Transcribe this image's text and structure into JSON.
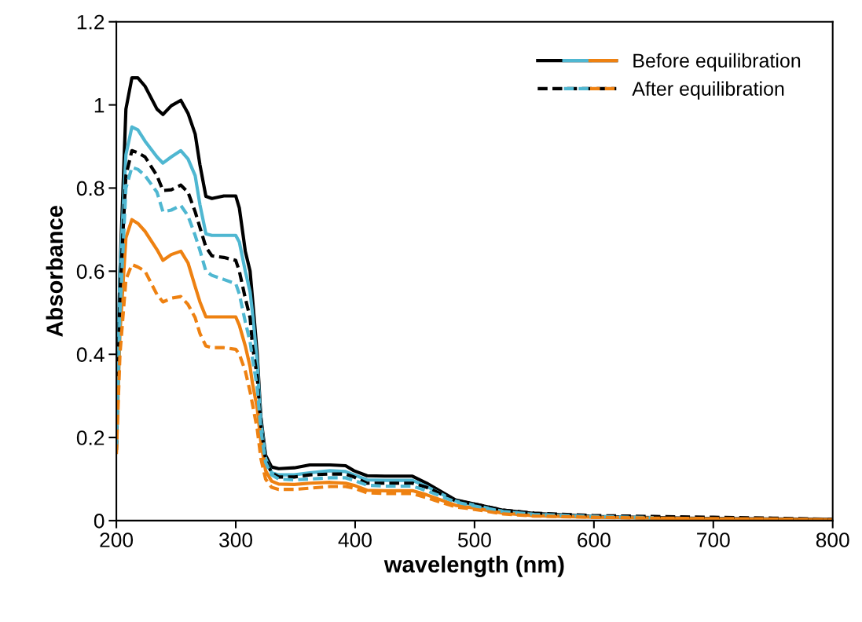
{
  "chart_data": {
    "type": "line",
    "xlabel": "wavelength (nm)",
    "ylabel": "Absorbance",
    "x": [
      200,
      203,
      208,
      213,
      218,
      224,
      234,
      239,
      246,
      254,
      260,
      266,
      270,
      275,
      280,
      290,
      300,
      303,
      308,
      312,
      314,
      318,
      321,
      325,
      330,
      336,
      349,
      362,
      379,
      392,
      399,
      410,
      425,
      448,
      460,
      484,
      500,
      524,
      550,
      600,
      650,
      700,
      750,
      800
    ],
    "xlim": [
      200,
      800
    ],
    "xticks": [
      200,
      300,
      400,
      500,
      600,
      700,
      800
    ],
    "ylim": [
      0,
      1.2
    ],
    "yticks": [
      0,
      0.2,
      0.4,
      0.6,
      0.8,
      1,
      1.2
    ],
    "grid": false,
    "legend": "top right",
    "marker": "none",
    "series": [
      {
        "name": "Before equilibration",
        "color": "#000000",
        "line_style": "solid",
        "values": [
          0.2,
          0.6,
          0.99,
          1.065,
          1.065,
          1.045,
          0.99,
          0.977,
          0.998,
          1.011,
          0.98,
          0.93,
          0.856,
          0.78,
          0.775,
          0.781,
          0.781,
          0.752,
          0.648,
          0.6,
          0.535,
          0.4,
          0.25,
          0.157,
          0.129,
          0.125,
          0.127,
          0.134,
          0.134,
          0.132,
          0.12,
          0.108,
          0.107,
          0.107,
          0.09,
          0.05,
          0.04,
          0.025,
          0.017,
          0.01,
          0.007,
          0.005,
          0.004,
          0.003
        ]
      },
      {
        "color": "#4fb7d1",
        "line_style": "solid",
        "values": [
          0.2,
          0.6,
          0.88,
          0.947,
          0.94,
          0.913,
          0.875,
          0.86,
          0.875,
          0.89,
          0.87,
          0.83,
          0.76,
          0.69,
          0.686,
          0.686,
          0.686,
          0.67,
          0.6,
          0.55,
          0.5,
          0.38,
          0.24,
          0.15,
          0.115,
          0.11,
          0.11,
          0.115,
          0.12,
          0.118,
          0.11,
          0.098,
          0.097,
          0.097,
          0.082,
          0.047,
          0.037,
          0.022,
          0.015,
          0.009,
          0.006,
          0.004,
          0.003,
          null
        ]
      },
      {
        "color": "#ee8111",
        "line_style": "solid",
        "values": [
          0.17,
          0.45,
          0.68,
          0.724,
          0.715,
          0.696,
          0.652,
          0.626,
          0.64,
          0.648,
          0.62,
          0.563,
          0.526,
          0.49,
          0.49,
          0.49,
          0.49,
          0.47,
          0.42,
          0.37,
          0.33,
          0.27,
          0.19,
          0.12,
          0.095,
          0.088,
          0.087,
          0.09,
          0.092,
          0.09,
          0.085,
          0.073,
          0.072,
          0.072,
          0.062,
          0.037,
          0.03,
          0.018,
          0.012,
          0.008,
          0.006,
          0.004,
          0.003,
          0.002
        ]
      },
      {
        "name": "After equilibration",
        "color": "#000000",
        "line_style": "dashed",
        "values": [
          0.17,
          0.55,
          0.83,
          0.89,
          0.885,
          0.875,
          0.83,
          0.794,
          0.796,
          0.807,
          0.79,
          0.743,
          0.705,
          0.658,
          0.637,
          0.633,
          0.626,
          0.6,
          0.535,
          0.488,
          0.42,
          0.346,
          0.23,
          0.147,
          0.115,
          0.105,
          0.105,
          0.11,
          0.112,
          0.112,
          0.105,
          0.09,
          0.09,
          0.09,
          0.08,
          0.048,
          0.04,
          0.025,
          0.018,
          0.012,
          0.01,
          0.008,
          0.006,
          0.003
        ]
      },
      {
        "color": "#4fb7d1",
        "line_style": "dashed",
        "values": [
          0.18,
          0.5,
          0.8,
          0.85,
          0.845,
          0.83,
          0.79,
          0.743,
          0.747,
          0.758,
          0.733,
          0.686,
          0.65,
          0.6,
          0.59,
          0.58,
          0.57,
          0.545,
          0.478,
          0.43,
          0.39,
          0.32,
          0.22,
          0.14,
          0.11,
          0.1,
          0.098,
          0.1,
          0.103,
          0.103,
          0.097,
          0.085,
          0.083,
          0.083,
          0.072,
          0.045,
          0.035,
          0.022,
          0.015,
          0.01,
          0.007,
          null,
          null,
          null
        ]
      },
      {
        "color": "#ee8111",
        "line_style": "dashed",
        "values": [
          0.16,
          0.4,
          0.58,
          0.616,
          0.61,
          0.6,
          0.544,
          0.526,
          0.535,
          0.539,
          0.52,
          0.488,
          0.45,
          0.42,
          0.416,
          0.416,
          0.412,
          0.4,
          0.36,
          0.31,
          0.28,
          0.22,
          0.15,
          0.1,
          0.08,
          0.075,
          0.075,
          0.078,
          0.082,
          0.082,
          0.078,
          0.067,
          0.065,
          0.065,
          0.055,
          0.033,
          0.027,
          0.016,
          0.011,
          0.008,
          0.006,
          0.005,
          0.004,
          0.002
        ]
      }
    ]
  }
}
